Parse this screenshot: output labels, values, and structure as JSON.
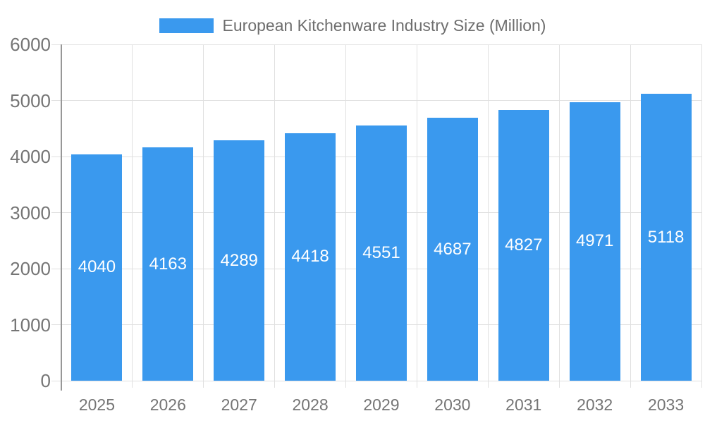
{
  "chart_data": {
    "type": "bar",
    "title": "European Kitchenware Industry Size (Million)",
    "categories": [
      "2025",
      "2026",
      "2027",
      "2028",
      "2029",
      "2030",
      "2031",
      "2032",
      "2033"
    ],
    "series": [
      {
        "name": "European Kitchenware Industry Size (Million)",
        "values": [
          4040,
          4163,
          4289,
          4418,
          4551,
          4687,
          4827,
          4971,
          5118
        ]
      }
    ],
    "xlabel": "",
    "ylabel": "",
    "ylim": [
      0,
      6000
    ],
    "yticks": [
      0,
      1000,
      2000,
      3000,
      4000,
      5000,
      6000
    ],
    "grid": true,
    "legend_position": "top",
    "bar_value_labels_inside": true,
    "colors": {
      "bar": "#3A99EE",
      "bar_value_label": "#FFFFFF",
      "axis_text": "#757575",
      "legend_text": "#6E6E6E",
      "gridline": "#E0E0E0",
      "axis_line": "#979797",
      "background": "#FFFFFF"
    }
  }
}
